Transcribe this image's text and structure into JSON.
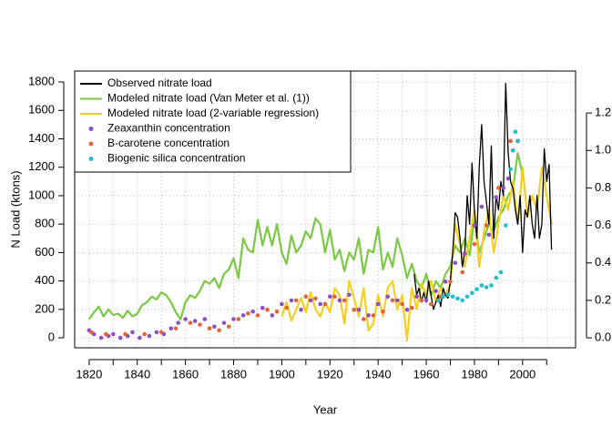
{
  "chart_data": {
    "type": "line",
    "xlabel": "Year",
    "ylabel": "N Load (ktons)",
    "xlim": [
      1814,
      2022
    ],
    "ylim": [
      -70,
      1877
    ],
    "y2lim": [
      -0.053,
      1.424
    ],
    "xticks": [
      1820,
      1840,
      1860,
      1880,
      1900,
      1920,
      1940,
      1960,
      1980,
      2000
    ],
    "xminorticks": [
      1830,
      1850,
      1870,
      1890,
      1910,
      1930,
      1950,
      1970,
      1990,
      2010
    ],
    "yticks": [
      0,
      200,
      400,
      600,
      800,
      1000,
      1200,
      1400,
      1600,
      1800
    ],
    "y2ticks": [
      {
        "value": 0,
        "label": "0.0"
      },
      0.2,
      0.4,
      0.6,
      0.8,
      {
        "value": 1,
        "label": "1.0"
      },
      1.2
    ],
    "grid": true,
    "legend": "topleft",
    "series": [
      {
        "name": "Observed nitrate load",
        "color": "#000000",
        "style": "line",
        "x": [
          1955,
          1956,
          1957,
          1958,
          1959,
          1960,
          1961,
          1962,
          1963,
          1964,
          1965,
          1966,
          1967,
          1968,
          1969,
          1970,
          1971,
          1972,
          1973,
          1974,
          1975,
          1976,
          1977,
          1978,
          1979,
          1980,
          1981,
          1982,
          1983,
          1984,
          1985,
          1986,
          1987,
          1988,
          1989,
          1990,
          1991,
          1992,
          1993,
          1994,
          1995,
          1996,
          1997,
          1998,
          1999,
          2000,
          2001,
          2002,
          2003,
          2004,
          2005,
          2006,
          2007,
          2008,
          2009,
          2010,
          2011,
          2012
        ],
        "values": [
          450,
          300,
          350,
          250,
          320,
          250,
          400,
          300,
          200,
          250,
          300,
          220,
          350,
          300,
          280,
          400,
          600,
          880,
          850,
          700,
          500,
          600,
          1000,
          800,
          1230,
          900,
          700,
          1200,
          1500,
          1100,
          950,
          800,
          1350,
          700,
          1000,
          900,
          1100,
          1000,
          1790,
          1300,
          1100,
          1050,
          900,
          800,
          1000,
          600,
          900,
          850,
          1000,
          800,
          700,
          1000,
          700,
          800,
          1330,
          1100,
          1220,
          620
        ]
      },
      {
        "name": "Modeled nitrate load (Van Meter et al. (1))",
        "color": "#7ac943",
        "style": "line",
        "x": [
          1820,
          1822,
          1824,
          1826,
          1828,
          1830,
          1832,
          1834,
          1836,
          1838,
          1840,
          1842,
          1844,
          1846,
          1848,
          1850,
          1852,
          1854,
          1856,
          1858,
          1860,
          1862,
          1864,
          1866,
          1868,
          1870,
          1872,
          1874,
          1876,
          1878,
          1880,
          1882,
          1884,
          1886,
          1888,
          1890,
          1892,
          1894,
          1896,
          1898,
          1900,
          1902,
          1904,
          1906,
          1908,
          1910,
          1912,
          1914,
          1916,
          1918,
          1920,
          1922,
          1924,
          1926,
          1928,
          1930,
          1932,
          1934,
          1936,
          1938,
          1940,
          1942,
          1944,
          1946,
          1948,
          1950,
          1952,
          1954,
          1956,
          1958,
          1960,
          1962,
          1964,
          1966,
          1968,
          1970,
          1972,
          1974,
          1976,
          1978,
          1980,
          1982,
          1984,
          1986,
          1988,
          1990,
          1992,
          1994,
          1996,
          1998,
          2000
        ],
        "values": [
          130,
          180,
          220,
          150,
          200,
          160,
          170,
          140,
          190,
          150,
          170,
          230,
          250,
          290,
          270,
          320,
          300,
          250,
          180,
          130,
          250,
          300,
          280,
          330,
          400,
          380,
          420,
          350,
          450,
          480,
          560,
          420,
          700,
          620,
          600,
          830,
          650,
          780,
          650,
          800,
          600,
          520,
          720,
          600,
          650,
          750,
          700,
          840,
          800,
          600,
          760,
          550,
          620,
          470,
          600,
          550,
          700,
          450,
          620,
          600,
          780,
          480,
          600,
          500,
          700,
          580,
          420,
          520,
          400,
          350,
          450,
          300,
          400,
          350,
          450,
          500,
          650,
          600,
          700,
          580,
          850,
          600,
          700,
          800,
          750,
          850,
          900,
          1000,
          1050,
          1300,
          1150
        ]
      },
      {
        "name": "Modeled nitrate load (2-variable regression)",
        "color": "#f5cf1f",
        "style": "line",
        "x": [
          1900,
          1902,
          1904,
          1906,
          1908,
          1910,
          1912,
          1914,
          1916,
          1918,
          1920,
          1922,
          1924,
          1926,
          1928,
          1930,
          1932,
          1934,
          1936,
          1938,
          1940,
          1942,
          1944,
          1946,
          1948,
          1950,
          1952,
          1954,
          1956,
          1958,
          1960,
          1962,
          1964,
          1966,
          1968,
          1970,
          1972,
          1974,
          1976,
          1978,
          1980,
          1982,
          1984,
          1986,
          1988,
          1990,
          1992,
          1994,
          1996,
          1998,
          2000,
          2002,
          2004,
          2006,
          2008,
          2010,
          2012
        ],
        "values": [
          150,
          250,
          120,
          200,
          280,
          180,
          320,
          200,
          150,
          250,
          180,
          350,
          300,
          100,
          400,
          280,
          150,
          350,
          50,
          100,
          300,
          150,
          350,
          400,
          200,
          300,
          -20,
          350,
          200,
          380,
          300,
          400,
          250,
          350,
          300,
          380,
          800,
          650,
          500,
          700,
          900,
          500,
          750,
          900,
          600,
          800,
          1000,
          900,
          1100,
          800,
          1200,
          850,
          1000,
          900,
          1200,
          1000,
          800
        ]
      },
      {
        "name": "Zeaxanthin concentration",
        "color": "#8e4ec6",
        "style": "points",
        "axis": "y2",
        "x": [
          1820,
          1822,
          1825,
          1828,
          1830,
          1833,
          1836,
          1838,
          1841,
          1845,
          1848,
          1851,
          1854,
          1857,
          1860,
          1864,
          1868,
          1872,
          1876,
          1880,
          1884,
          1888,
          1892,
          1896,
          1900,
          1904,
          1908,
          1912,
          1916,
          1920,
          1924,
          1928,
          1932,
          1936,
          1940,
          1944,
          1948,
          1952,
          1956,
          1960,
          1964,
          1968,
          1972,
          1976,
          1980,
          1983,
          1986,
          1989,
          1992,
          1994,
          1996,
          1998
        ],
        "values": [
          0.04,
          0.02,
          0,
          0.01,
          0.02,
          0,
          0.01,
          0.03,
          0,
          0.01,
          0.03,
          0.02,
          0.05,
          0.08,
          0.1,
          0.09,
          0.1,
          0.06,
          0.08,
          0.1,
          0.12,
          0.14,
          0.16,
          0.12,
          0.18,
          0.2,
          0.15,
          0.2,
          0.18,
          0.22,
          0.2,
          0.23,
          0.15,
          0.12,
          0.18,
          0.22,
          0.2,
          0.15,
          0.22,
          0.2,
          0.25,
          0.3,
          0.4,
          0.45,
          0.6,
          0.7,
          0.55,
          0.75,
          0.8,
          0.85,
          1.0,
          1.05
        ]
      },
      {
        "name": "B-carotene concentration",
        "color": "#e0663a",
        "style": "points",
        "axis": "y2",
        "x": [
          1821,
          1827,
          1835,
          1843,
          1850,
          1856,
          1862,
          1866,
          1870,
          1874,
          1878,
          1882,
          1886,
          1890,
          1894,
          1898,
          1902,
          1906,
          1910,
          1914,
          1918,
          1922,
          1926,
          1930,
          1934,
          1938,
          1942,
          1946,
          1950,
          1954,
          1958,
          1962,
          1966,
          1970,
          1975,
          1980,
          1985,
          1990,
          1995
        ],
        "values": [
          0.03,
          0.02,
          0.02,
          0.02,
          0.03,
          0.05,
          0.08,
          0.07,
          0.05,
          0.04,
          0.06,
          0.1,
          0.13,
          0.12,
          0.15,
          0.14,
          0.16,
          0.2,
          0.22,
          0.21,
          0.18,
          0.22,
          0.2,
          0.15,
          0.1,
          0.12,
          0.14,
          0.2,
          0.18,
          0.16,
          0.2,
          0.18,
          0.22,
          0.3,
          0.35,
          0.5,
          0.6,
          0.8,
          1.05
        ]
      },
      {
        "name": "Biogenic silica concentration",
        "color": "#1fc1c9",
        "style": "points",
        "axis": "y2",
        "x": [
          1965,
          1967,
          1969,
          1971,
          1973,
          1975,
          1977,
          1979,
          1981,
          1983,
          1985,
          1987,
          1989,
          1991,
          1993,
          1995,
          1996,
          1997,
          1998
        ],
        "values": [
          0.2,
          0.22,
          0.23,
          0.22,
          0.21,
          0.2,
          0.22,
          0.24,
          0.26,
          0.28,
          0.27,
          0.28,
          0.32,
          0.35,
          0.6,
          0.9,
          1.0,
          1.1,
          1.05
        ]
      }
    ]
  }
}
